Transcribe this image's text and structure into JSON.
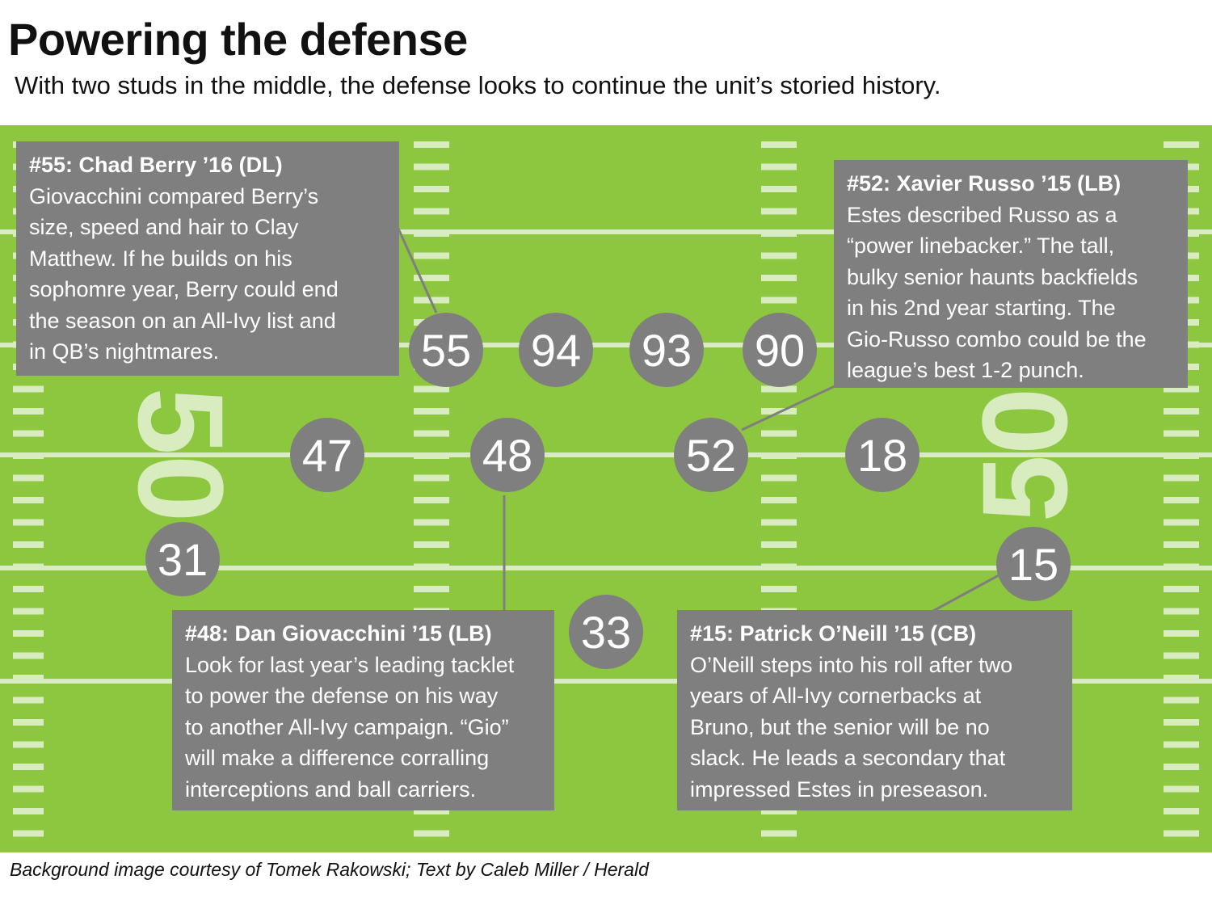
{
  "title": "Powering the defense",
  "subtitle": "With two studs in the middle, the defense looks to continue the unit’s storied history.",
  "credit": "Background image courtesy of Tomek Rakowski; Text by Caleb Miller / Herald",
  "colors": {
    "field": "#8dc63f",
    "field_lines": "#d8ecbf",
    "box": "#7f7f7f",
    "player_circle": "#7f7f7f",
    "text_light": "#ffffff"
  },
  "yard_numbers": [
    "50",
    "50"
  ],
  "players": [
    "55",
    "94",
    "93",
    "90",
    "47",
    "48",
    "52",
    "18",
    "31",
    "15",
    "33"
  ],
  "callouts": {
    "berry": {
      "heading": "#55: Chad Berry ’16 (DL)",
      "lines": [
        "Giovacchini compared Berry’s",
        "size, speed and hair to  Clay",
        "Matthew. If he builds on his",
        "sophomre year, Berry could end",
        "the season on an All-Ivy list and",
        "in QB’s nightmares."
      ]
    },
    "russo": {
      "heading": "#52: Xavier Russo ’15 (LB)",
      "lines": [
        "Estes described Russo as a",
        "“power linebacker.” The tall,",
        "bulky senior haunts backfields",
        "in his 2nd year starting. The",
        "Gio-Russo combo could be the",
        "league’s best 1-2 punch."
      ]
    },
    "giovacchini": {
      "heading": "#48: Dan Giovacchini ’15 (LB)",
      "lines": [
        "Look for last year’s leading tacklet",
        "to power the defense on his way",
        "to another All-Ivy campaign. “Gio”",
        "will make a difference corralling",
        "interceptions and ball carriers."
      ]
    },
    "oneill": {
      "heading": "#15: Patrick O’Neill ’15 (CB)",
      "lines": [
        "O’Neill steps into his roll after two",
        "years of All-Ivy cornerbacks at",
        "Bruno, but the senior will be no",
        "slack. He leads a secondary that",
        "impressed Estes in preseason."
      ]
    }
  }
}
